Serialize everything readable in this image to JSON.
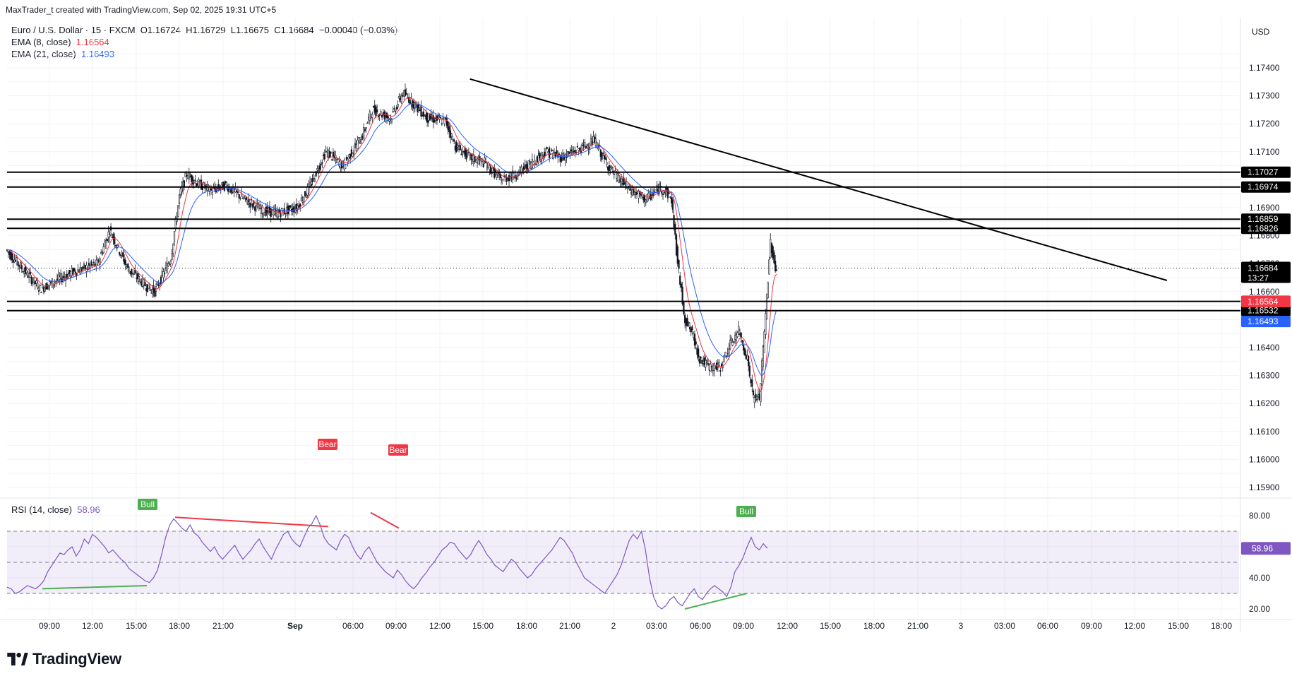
{
  "header": {
    "attribution": "MaxTrader_t created with TradingView.com, Sep 02, 2025 19:31 UTC+5",
    "symbol_line": "Euro / U.S. Dollar · 15 · FXCM",
    "ohlc": {
      "o_label": "O",
      "o": "1.16724",
      "h_label": "H",
      "h": "1.16729",
      "l_label": "L",
      "l": "1.16675",
      "c_label": "C",
      "c": "1.16684",
      "change": "−0.00040 (−0.03%)"
    },
    "ema8": {
      "label": "EMA (8, close)",
      "value": "1.16564",
      "color": "#f23645"
    },
    "ema21": {
      "label": "EMA (21, close)",
      "value": "1.16493",
      "color": "#2962ff"
    }
  },
  "currency": "USD",
  "logo_text": "TradingView",
  "chart_data": {
    "type": "candlestick",
    "price_axis": {
      "ticks": [
        "1.17400",
        "1.17300",
        "1.17200",
        "1.17100",
        "1.16900",
        "1.16800",
        "1.16700",
        "1.16600",
        "1.16400",
        "1.16300",
        "1.16200",
        "1.16100",
        "1.16000",
        "1.15900"
      ],
      "range": [
        1.1585,
        1.176
      ]
    },
    "time_axis": [
      "09:00",
      "12:00",
      "15:00",
      "18:00",
      "21:00",
      "Sep",
      "06:00",
      "09:00",
      "12:00",
      "15:00",
      "18:00",
      "21:00",
      "2",
      "03:00",
      "06:00",
      "09:00",
      "12:00",
      "15:00",
      "18:00",
      "21:00",
      "3",
      "03:00",
      "06:00",
      "09:00",
      "12:00",
      "15:00",
      "18:00"
    ],
    "horizontal_levels": [
      {
        "price": 1.17027,
        "label": "1.17027"
      },
      {
        "price": 1.16974,
        "label": "1.16974"
      },
      {
        "price": 1.16859,
        "label": "1.16859"
      },
      {
        "price": 1.16826,
        "label": "1.16826"
      },
      {
        "price": 1.16565,
        "label": "1.16565"
      },
      {
        "price": 1.16532,
        "label": "1.16532"
      }
    ],
    "trendline": {
      "start_price": 1.1736,
      "end_price": 1.1664
    },
    "last_price": {
      "value": "1.16684",
      "countdown": "13:27",
      "color": "#131722"
    },
    "ema_tags": [
      {
        "value": "1.16564",
        "color": "#f23645"
      },
      {
        "value": "1.16493",
        "color": "#2962ff"
      }
    ],
    "ema_close_values": [
      {
        "price": 1.16742,
        "ema8": 1.16715,
        "ema21": 1.1677
      },
      {
        "price": 1.1672,
        "ema8": 1.1671,
        "ema21": 1.1674
      },
      {
        "price": 1.1664,
        "ema8": 1.1665,
        "ema21": 1.1668
      },
      {
        "price": 1.1658,
        "ema8": 1.166,
        "ema21": 1.1663
      },
      {
        "price": 1.167,
        "ema8": 1.1668,
        "ema21": 1.1666
      },
      {
        "price": 1.17,
        "ema8": 1.1695,
        "ema21": 1.1685
      },
      {
        "price": 1.1698,
        "ema8": 1.1697,
        "ema21": 1.1694
      },
      {
        "price": 1.1685,
        "ema8": 1.169,
        "ema21": 1.1692
      },
      {
        "price": 1.1688,
        "ema8": 1.1688,
        "ema21": 1.1689
      },
      {
        "price": 1.1715,
        "ema8": 1.1705,
        "ema21": 1.1698
      },
      {
        "price": 1.172,
        "ema8": 1.1722,
        "ema21": 1.1715
      },
      {
        "price": 1.173,
        "ema8": 1.1726,
        "ema21": 1.1723
      },
      {
        "price": 1.1715,
        "ema8": 1.1718,
        "ema21": 1.172
      },
      {
        "price": 1.1705,
        "ema8": 1.1708,
        "ema21": 1.1712
      },
      {
        "price": 1.1712,
        "ema8": 1.171,
        "ema21": 1.1709
      },
      {
        "price": 1.1715,
        "ema8": 1.1714,
        "ema21": 1.1713
      },
      {
        "price": 1.1705,
        "ema8": 1.1706,
        "ema21": 1.1708
      },
      {
        "price": 1.1695,
        "ema8": 1.1696,
        "ema21": 1.17
      },
      {
        "price": 1.1698,
        "ema8": 1.1698,
        "ema21": 1.1697
      },
      {
        "price": 1.165,
        "ema8": 1.166,
        "ema21": 1.1675
      },
      {
        "price": 1.1635,
        "ema8": 1.1642,
        "ema21": 1.1658
      },
      {
        "price": 1.162,
        "ema8": 1.1635,
        "ema21": 1.1645
      },
      {
        "price": 1.16684,
        "ema8": 1.16564,
        "ema21": 1.16493
      }
    ]
  },
  "rsi": {
    "label": "RSI (14, close)",
    "value": "58.96",
    "ticks": [
      "80.00",
      "60.00",
      "40.00",
      "20.00"
    ],
    "upper_band": 70,
    "middle_band": 50,
    "lower_band": 30,
    "series": [
      34,
      33,
      30,
      31,
      33,
      35,
      34,
      33,
      35,
      38,
      44,
      48,
      52,
      56,
      55,
      58,
      60,
      54,
      58,
      65,
      62,
      68,
      66,
      63,
      60,
      56,
      58,
      55,
      52,
      50,
      46,
      44,
      42,
      40,
      38,
      37,
      40,
      45,
      55,
      66,
      74,
      78,
      75,
      72,
      70,
      74,
      69,
      67,
      63,
      60,
      57,
      60,
      55,
      52,
      55,
      58,
      61,
      56,
      52,
      55,
      58,
      62,
      65,
      60,
      56,
      52,
      58,
      63,
      68,
      70,
      65,
      62,
      60,
      66,
      72,
      75,
      80,
      74,
      66,
      62,
      60,
      58,
      64,
      68,
      66,
      60,
      55,
      52,
      57,
      60,
      55,
      50,
      47,
      44,
      42,
      40,
      45,
      42,
      38,
      35,
      33,
      36,
      40,
      43,
      47,
      50,
      54,
      58,
      60,
      63,
      62,
      58,
      55,
      52,
      55,
      60,
      64,
      60,
      55,
      52,
      48,
      46,
      44,
      48,
      52,
      50,
      46,
      43,
      40,
      42,
      46,
      49,
      52,
      55,
      58,
      62,
      66,
      64,
      60,
      56,
      50,
      45,
      40,
      38,
      36,
      34,
      32,
      30,
      34,
      38,
      42,
      48,
      56,
      64,
      68,
      65,
      70,
      58,
      40,
      28,
      22,
      20,
      22,
      26,
      28,
      24,
      22,
      26,
      30,
      33,
      28,
      26,
      30,
      33,
      35,
      33,
      31,
      28,
      34,
      44,
      48,
      53,
      60,
      66,
      60,
      58,
      62,
      59
    ]
  },
  "divergences": [
    {
      "label": "Bear",
      "color": "#f23645"
    },
    {
      "label": "Bear",
      "color": "#f23645"
    },
    {
      "label": "Bull",
      "color": "#4caf50"
    },
    {
      "label": "Bull",
      "color": "#4caf50"
    }
  ]
}
